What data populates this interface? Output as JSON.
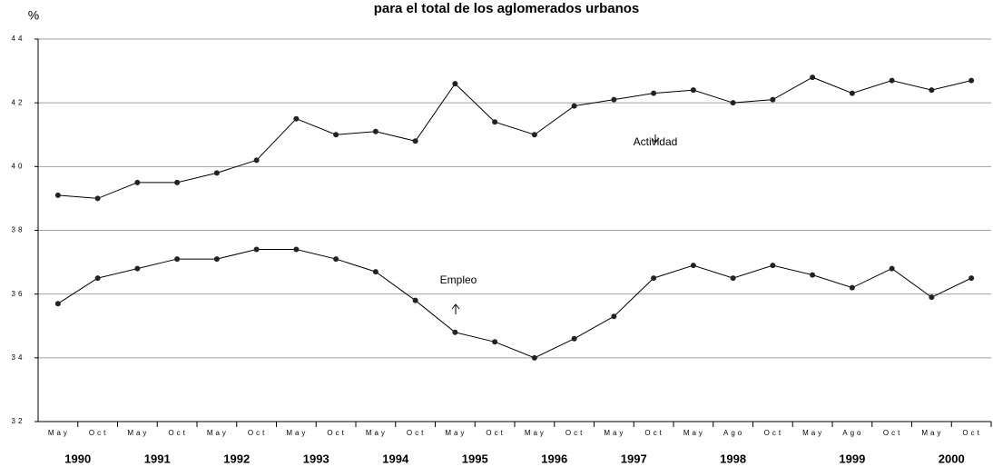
{
  "chart_data": {
    "type": "line",
    "title": "para el total de los aglomerados urbanos",
    "y_label": "%",
    "categories": [
      "May",
      "Oct",
      "May",
      "Oct",
      "May",
      "Oct",
      "May",
      "Oct",
      "May",
      "Oct",
      "May",
      "Oct",
      "May",
      "Oct",
      "May",
      "Oct",
      "May",
      "Ago",
      "Oct",
      "May",
      "Ago",
      "Oct",
      "May",
      "Oct"
    ],
    "year_groups": [
      {
        "label": "1990",
        "count": 2
      },
      {
        "label": "1991",
        "count": 2
      },
      {
        "label": "1992",
        "count": 2
      },
      {
        "label": "1993",
        "count": 2
      },
      {
        "label": "1994",
        "count": 2
      },
      {
        "label": "1995",
        "count": 2
      },
      {
        "label": "1996",
        "count": 2
      },
      {
        "label": "1997",
        "count": 2
      },
      {
        "label": "1998",
        "count": 3
      },
      {
        "label": "1999",
        "count": 3
      },
      {
        "label": "2000",
        "count": 2
      }
    ],
    "series": [
      {
        "name": "Actividad",
        "color": "#000000",
        "values": [
          39.1,
          39.0,
          39.5,
          39.5,
          39.8,
          40.2,
          41.5,
          41.0,
          41.1,
          40.8,
          42.6,
          41.4,
          41.0,
          41.9,
          42.1,
          42.3,
          42.4,
          42.0,
          42.1,
          42.8,
          42.3,
          42.7,
          42.4,
          42.7
        ]
      },
      {
        "name": "Empleo",
        "color": "#000000",
        "values": [
          35.7,
          36.5,
          36.8,
          37.1,
          37.1,
          37.4,
          37.4,
          37.1,
          36.7,
          35.8,
          34.8,
          34.5,
          34.0,
          34.6,
          35.3,
          36.5,
          36.9,
          36.5,
          36.9,
          36.6,
          36.2,
          36.8,
          35.9,
          36.5
        ]
      }
    ],
    "ylim": [
      32,
      44
    ],
    "yticks": [
      32,
      34,
      36,
      38,
      40,
      42,
      44
    ],
    "grid": true
  }
}
